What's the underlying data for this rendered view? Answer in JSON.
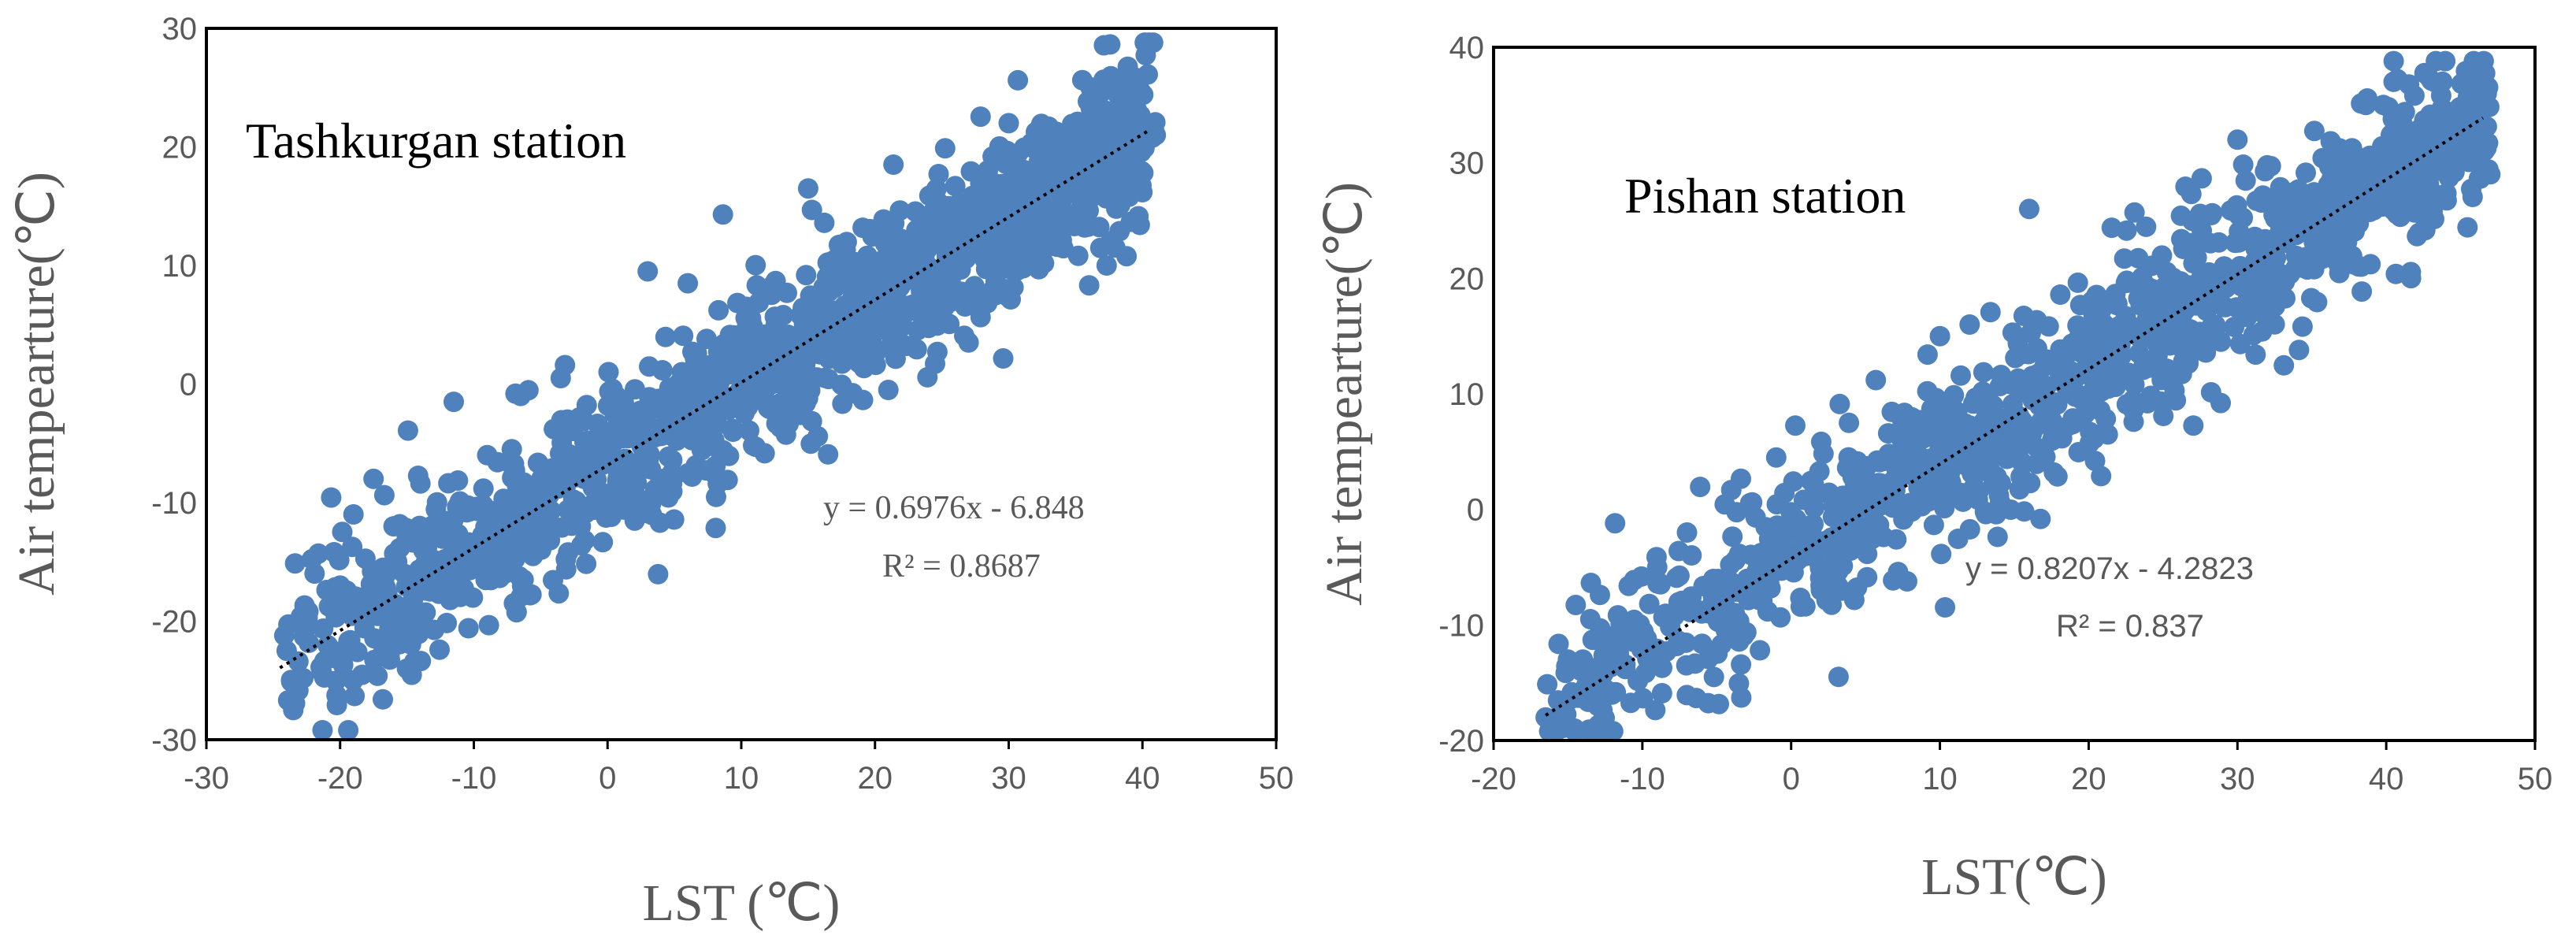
{
  "colors": {
    "point": "#4F81BD",
    "axis": "#000000",
    "text": "#595959",
    "trend": "#000000"
  },
  "chart_data": [
    {
      "type": "scatter",
      "title": "Tashkurgan station",
      "xlabel": "LST (℃)",
      "ylabel": "Air tempearture(℃)",
      "xlim": [
        -30,
        50
      ],
      "ylim": [
        -30,
        30
      ],
      "xticks": [
        "-30",
        "-20",
        "-10",
        "0",
        "10",
        "20",
        "30",
        "40",
        "50"
      ],
      "yticks": [
        "30",
        "20",
        "10",
        "0",
        "-10",
        "-20",
        "-30"
      ],
      "trendline": {
        "slope": 0.6976,
        "intercept": -6.848,
        "x_range": [
          -24.5,
          40.5
        ]
      },
      "equation": "y = 0.6976x - 6.848",
      "r2": "R² = 0.8687",
      "point_cloud": {
        "x_range": [
          -24.5,
          41
        ],
        "spread": 4.2,
        "n": 1400
      },
      "outliers": [
        [
          -24,
          -22.5
        ],
        [
          -23.5,
          -27.5
        ],
        [
          -22.5,
          -20.5
        ],
        [
          -20,
          -17
        ],
        [
          -19,
          -11
        ],
        [
          -17.5,
          -8
        ],
        [
          -16,
          -12
        ],
        [
          -11.5,
          -1.5
        ],
        [
          -9,
          -6
        ],
        [
          -6.5,
          -1
        ],
        [
          -3.5,
          0.5
        ],
        [
          -3,
          -3
        ],
        [
          3,
          9.5
        ],
        [
          6,
          8.5
        ],
        [
          15,
          16.5
        ],
        [
          27,
          3.5
        ],
        [
          30,
          22
        ],
        [
          41,
          21
        ],
        [
          21,
          -0.5
        ],
        [
          -15,
          -24
        ],
        [
          -7,
          -18.5
        ],
        [
          -2,
          -12
        ]
      ]
    },
    {
      "type": "scatter",
      "title": "Pishan station",
      "xlabel": "LST(℃)",
      "ylabel": "Air tempearture(℃)",
      "xlim": [
        -20,
        50
      ],
      "ylim": [
        -20,
        40
      ],
      "xticks": [
        "-20",
        "-10",
        "0",
        "10",
        "20",
        "30",
        "40",
        "50"
      ],
      "yticks": [
        "40",
        "30",
        "20",
        "10",
        "0",
        "-10",
        "-20"
      ],
      "trendline": {
        "slope": 0.8207,
        "intercept": -4.2823,
        "x_range": [
          -16.5,
          46.5
        ]
      },
      "equation": "y = 0.8207x - 4.2823",
      "r2": "R² = 0.837",
      "point_cloud": {
        "x_range": [
          -16.5,
          47
        ],
        "spread": 4.5,
        "n": 1200
      },
      "outliers": [
        [
          -16.5,
          -18
        ],
        [
          -15,
          -13
        ],
        [
          -13.5,
          -9.5
        ],
        [
          -13,
          -17
        ],
        [
          -12,
          -11
        ],
        [
          -11,
          -11
        ],
        [
          -9,
          -5
        ],
        [
          -7,
          -2
        ],
        [
          -6,
          -9
        ],
        [
          -4,
          -11
        ],
        [
          -1,
          4.5
        ],
        [
          10,
          15
        ],
        [
          12,
          16
        ],
        [
          16,
          26
        ],
        [
          30,
          32
        ],
        [
          44,
          30
        ],
        [
          47,
          29
        ],
        [
          -14,
          -13
        ],
        [
          2,
          -7
        ],
        [
          8,
          3
        ]
      ]
    }
  ]
}
